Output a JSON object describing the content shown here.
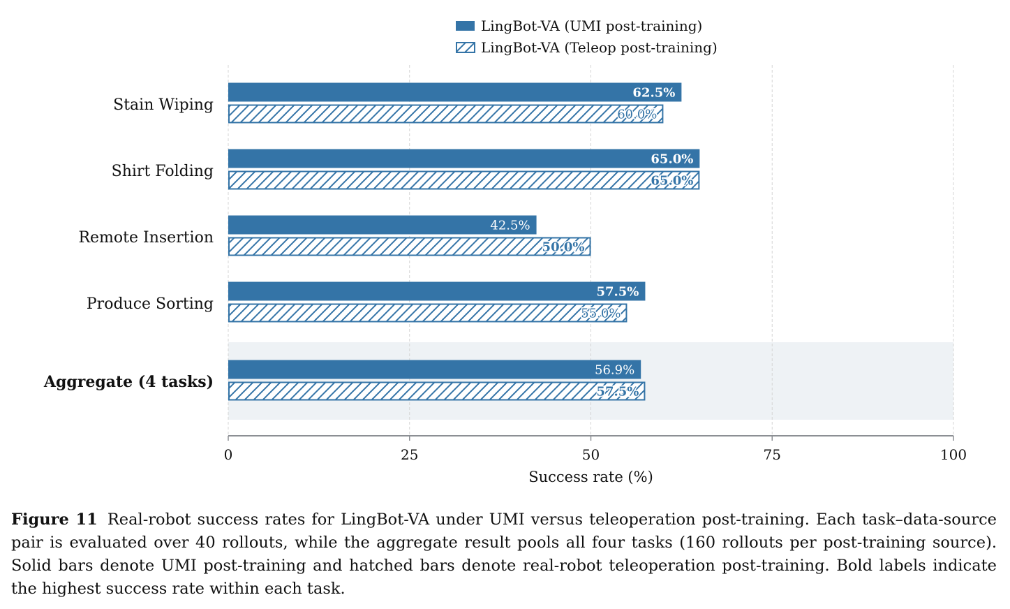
{
  "chart_data": {
    "type": "bar",
    "orientation": "horizontal",
    "categories": [
      "Stain Wiping",
      "Shirt Folding",
      "Remote Insertion",
      "Produce Sorting",
      "Aggregate (4 tasks)"
    ],
    "series": [
      {
        "name": "LingBot-VA (UMI post-training)",
        "style": "solid",
        "color": "#3474a7",
        "values": [
          62.5,
          65.0,
          42.5,
          57.5,
          56.9
        ],
        "labels": [
          "62.5%",
          "65.0%",
          "42.5%",
          "57.5%",
          "56.9%"
        ],
        "bold": [
          true,
          true,
          false,
          true,
          false
        ]
      },
      {
        "name": "LingBot-VA (Teleop post-training)",
        "style": "hatched",
        "color": "#3474a7",
        "values": [
          60.0,
          65.0,
          50.0,
          55.0,
          57.5
        ],
        "labels": [
          "60.0%",
          "65.0%",
          "50.0%",
          "55.0%",
          "57.5%"
        ],
        "bold": [
          false,
          true,
          true,
          false,
          true
        ]
      }
    ],
    "highlight_category": "Aggregate (4 tasks)",
    "xlabel": "Success rate (%)",
    "xlim": [
      0,
      100
    ],
    "xticks": [
      0,
      25,
      50,
      75,
      100
    ],
    "grid": "vertical dashed",
    "legend_position": "top-center"
  },
  "caption": {
    "label": "Figure 11",
    "text": "Real-robot success rates for LingBot-VA under UMI versus teleoperation post-training. Each task–data-source pair is evaluated over 40 rollouts, while the aggregate result pools all four tasks (160 rollouts per post-training source). Solid bars denote UMI post-training and hatched bars denote real-robot teleoperation post-training. Bold labels indicate the highest success rate within each task."
  }
}
